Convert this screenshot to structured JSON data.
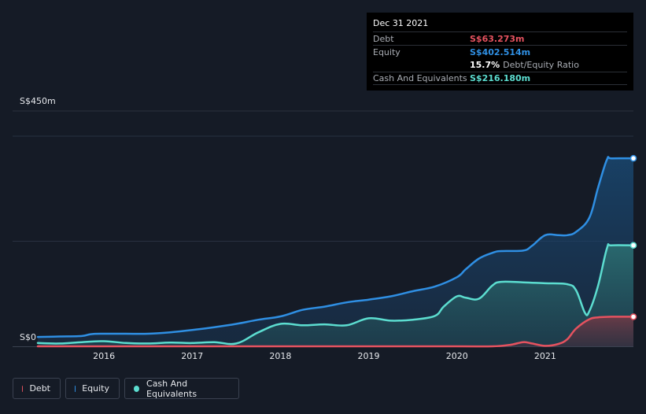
{
  "chart_data": {
    "type": "area",
    "title": "",
    "xlabel": "",
    "ylabel": "",
    "ylim": [
      0,
      450
    ],
    "y_tick_labels": [
      "S$450m",
      "S$0"
    ],
    "x_tick_labels": [
      "2016",
      "2017",
      "2018",
      "2019",
      "2020",
      "2021"
    ],
    "x_tick_values": [
      2016,
      2017,
      2018,
      2019,
      2020,
      2021
    ],
    "xlim": [
      2015.25,
      2022.0
    ],
    "series": [
      {
        "name": "Equity",
        "color": "#2f8fe3",
        "x": [
          2015.25,
          2015.5,
          2015.75,
          2015.85,
          2016.0,
          2016.25,
          2016.5,
          2016.75,
          2017.0,
          2017.25,
          2017.5,
          2017.75,
          2018.0,
          2018.25,
          2018.5,
          2018.75,
          2019.0,
          2019.25,
          2019.5,
          2019.75,
          2020.0,
          2020.1,
          2020.25,
          2020.4,
          2020.5,
          2020.75,
          2020.85,
          2021.0,
          2021.15,
          2021.25,
          2021.35,
          2021.5,
          2021.6,
          2021.7,
          2021.75,
          2022.0
        ],
        "values": [
          20,
          21,
          22,
          26,
          27,
          27,
          27,
          30,
          35,
          41,
          48,
          57,
          64,
          78,
          85,
          94,
          100,
          107,
          118,
          128,
          148,
          165,
          188,
          200,
          204,
          205,
          215,
          238,
          238,
          238,
          245,
          275,
          340,
          400,
          402.5,
          402.5
        ]
      },
      {
        "name": "Cash And Equivalents",
        "color": "#5cddd0",
        "x": [
          2015.25,
          2015.5,
          2015.75,
          2016.0,
          2016.25,
          2016.5,
          2016.75,
          2017.0,
          2017.25,
          2017.5,
          2017.75,
          2018.0,
          2018.25,
          2018.5,
          2018.75,
          2019.0,
          2019.25,
          2019.5,
          2019.75,
          2019.85,
          2020.0,
          2020.1,
          2020.25,
          2020.4,
          2020.5,
          2020.75,
          2021.0,
          2021.25,
          2021.35,
          2021.45,
          2021.5,
          2021.6,
          2021.7,
          2021.75,
          2022.0
        ],
        "values": [
          7,
          6,
          9,
          11,
          7,
          6,
          8,
          7,
          9,
          6,
          30,
          48,
          45,
          47,
          45,
          60,
          55,
          57,
          65,
          85,
          107,
          104,
          102,
          130,
          138,
          137,
          135,
          133,
          120,
          72,
          75,
          130,
          210,
          216.2,
          216.2
        ]
      },
      {
        "name": "Debt",
        "color": "#e5525f",
        "x": [
          2015.25,
          2016.0,
          2017.0,
          2018.0,
          2019.0,
          2020.0,
          2020.4,
          2020.6,
          2020.75,
          2020.85,
          2021.0,
          2021.15,
          2021.25,
          2021.35,
          2021.5,
          2021.6,
          2021.75,
          2022.0
        ],
        "values": [
          0,
          0,
          0,
          0,
          0,
          0,
          0,
          3,
          9,
          6,
          1,
          5,
          15,
          38,
          58,
          62,
          63.3,
          63.3
        ]
      }
    ]
  },
  "tooltip": {
    "date": "Dec 31 2021",
    "debt_label": "Debt",
    "debt_value": "S$63.273m",
    "equity_label": "Equity",
    "equity_value": "S$402.514m",
    "ratio_value": "15.7%",
    "ratio_label": "Debt/Equity Ratio",
    "cash_label": "Cash And Equivalents",
    "cash_value": "S$216.180m"
  },
  "legend": {
    "debt": "Debt",
    "equity": "Equity",
    "cash": "Cash And Equivalents"
  },
  "colors": {
    "debt": "#e5525f",
    "equity": "#2f8fe3",
    "cash": "#5cddd0",
    "background": "#151b26"
  }
}
